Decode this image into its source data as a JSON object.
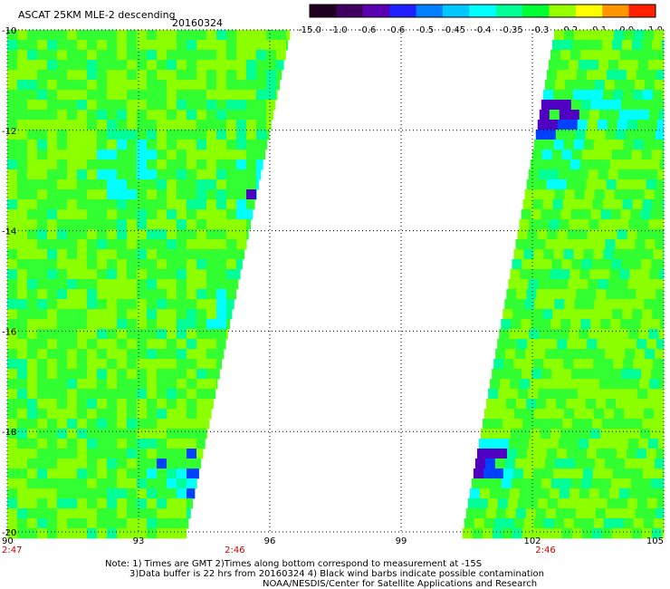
{
  "header": {
    "title": "ASCAT 25KM MLE-2 descending",
    "date": "20160324"
  },
  "colorbar": {
    "labels": [
      "-15.0",
      "-1.0",
      "-0.6",
      "-0.6",
      "-0.5",
      "-0.45",
      "-0.4",
      "-0.35",
      "-0.3",
      "-0.2",
      "-0.1",
      "0.0",
      "1.0"
    ],
    "colors": [
      "#200020",
      "#400060",
      "#5a00b0",
      "#2020ff",
      "#0080ff",
      "#00c8ff",
      "#00ffff",
      "#00ff96",
      "#00ff32",
      "#96ff00",
      "#ffff00",
      "#ff9600",
      "#ff2000"
    ]
  },
  "map": {
    "lon_range": [
      90,
      105
    ],
    "lat_range": [
      -20,
      -10
    ],
    "lon_ticks": [
      "90",
      "93",
      "96",
      "99",
      "102",
      "105"
    ],
    "lat_ticks": [
      "-10",
      "-12",
      "-14",
      "-16",
      "-18",
      "-20"
    ],
    "pass_times": [
      {
        "label": "2:47",
        "lon": 90
      },
      {
        "label": "2:46",
        "lon": 95.2
      },
      {
        "label": "2:46",
        "lon": 102.3
      }
    ],
    "colors": {
      "green": "#32ff32",
      "yellowgreen": "#8cff00",
      "cyan": "#00ffff",
      "seagreen": "#00ff96",
      "blue": "#0040ff",
      "purple": "#5000c0",
      "tick_red": "#cc0000"
    }
  },
  "notes": {
    "line1": "Note: 1) Times are GMT 2)Times along bottom correspond to measurement at -15S",
    "line2": "3)Data buffer is 22 hrs from 20160324 4) Black wind barbs indicate possible contamination",
    "line3": "NOAA/NESDIS/Center for Satellite Applications and Research"
  }
}
